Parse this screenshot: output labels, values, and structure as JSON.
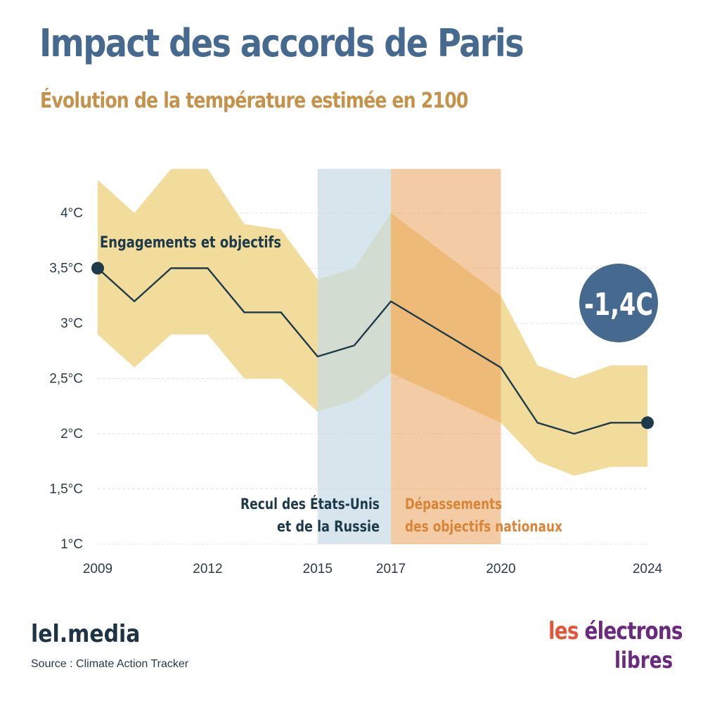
{
  "title": "Impact des accords de Paris",
  "subtitle": "Évolution de la température estimée en 2100",
  "colors": {
    "title": "#46698f",
    "subtitle": "#c5924a",
    "band": "#f1dc9c",
    "line": "#1d3a4a",
    "period_withdrawal": "#c8dde6",
    "period_overshoot": "#eaa05a",
    "badge": "#46698f"
  },
  "chart_data": {
    "type": "line",
    "x": [
      2009,
      2010,
      2011,
      2012,
      2013,
      2014,
      2015,
      2016,
      2017,
      2018,
      2019,
      2020,
      2021,
      2022,
      2023,
      2024
    ],
    "series": [
      {
        "name": "",
        "values": [
          3.5,
          3.2,
          3.5,
          3.5,
          3.1,
          3.1,
          2.7,
          2.8,
          3.2,
          3.0,
          2.8,
          2.6,
          2.1,
          2.0,
          2.1,
          2.1
        ]
      }
    ],
    "range_low": [
      2.9,
      2.6,
      2.9,
      2.9,
      2.5,
      2.5,
      2.2,
      2.3,
      2.55,
      2.4,
      2.25,
      2.1,
      1.75,
      1.62,
      1.7,
      1.7
    ],
    "range_high": [
      4.3,
      4.0,
      4.4,
      4.4,
      3.9,
      3.85,
      3.4,
      3.5,
      4.0,
      3.75,
      3.5,
      3.25,
      2.62,
      2.5,
      2.62,
      2.62
    ],
    "xlim": [
      2009,
      2024
    ],
    "ylim": [
      1,
      4.4
    ],
    "x_ticks": [
      "2009",
      "2012",
      "2015",
      "2017",
      "2020",
      "2024"
    ],
    "x_tick_values": [
      2009,
      2012,
      2015,
      2017,
      2020,
      2024
    ],
    "y_ticks": [
      "1°C",
      "1,5°C",
      "2°C",
      "2,5°C",
      "3°C",
      "3,5°C",
      "4°C"
    ],
    "y_tick_values": [
      1,
      1.5,
      2,
      2.5,
      3,
      3.5,
      4
    ],
    "grid": true,
    "periods": [
      {
        "start": 2015,
        "end": 2017,
        "label_line1": "Recul des États-Unis",
        "label_line2": "et de la Russie"
      },
      {
        "start": 2017,
        "end": 2020,
        "label_line1": "Dépassements",
        "label_line2": "des objectifs nationaux"
      }
    ],
    "annotation": "Engagements et objectifs",
    "badge": "-1,4C"
  },
  "footer": {
    "brand": "lel.media",
    "source": "Source : Climate Action Tracker"
  },
  "logo": {
    "line1_a": "les",
    "line1_b": "électrons",
    "line2": "libres"
  }
}
